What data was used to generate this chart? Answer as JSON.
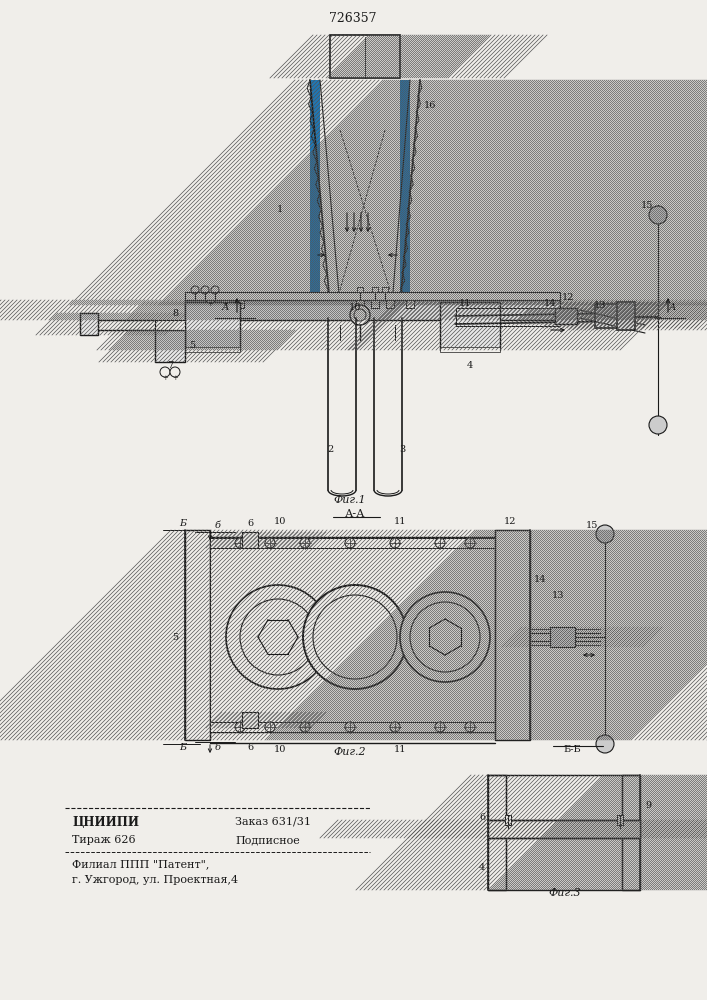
{
  "title": "726357",
  "fig1_label": "Фиг.1",
  "fig2_label": "Фиг.2",
  "fig3_label": "Фиг.3",
  "section_aa": "А-А",
  "section_bb": "Б-Б",
  "footer_line1a": "ЦНИИПИ",
  "footer_line1b": "Заказ 631/31",
  "footer_line2a": "Тираж 626",
  "footer_line2b": "Подписное",
  "footer_line3": "Филиал ППП \"Патент\",",
  "footer_line4": "г. Ужгород, ул. Проектная,4",
  "bg_color": "#f0eeea",
  "line_color": "#1a1a1a"
}
